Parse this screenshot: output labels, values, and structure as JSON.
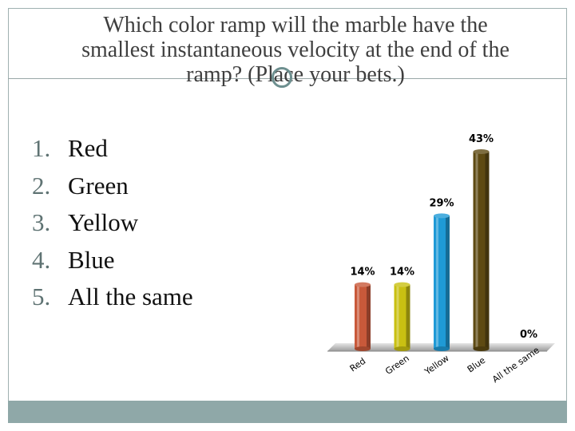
{
  "slide": {
    "title_lines": [
      "Which color ramp will the marble have the",
      "smallest instantaneous velocity at the end of the",
      "ramp? (Place your bets.)"
    ]
  },
  "options": [
    {
      "number": "1.",
      "label": "Red"
    },
    {
      "number": "2.",
      "label": "Green"
    },
    {
      "number": "3.",
      "label": "Yellow"
    },
    {
      "number": "4.",
      "label": "Blue"
    },
    {
      "number": "5.",
      "label": "All the same"
    }
  ],
  "chart_data": {
    "type": "bar",
    "categories": [
      "Red",
      "Green",
      "Yellow",
      "Blue",
      "All the same"
    ],
    "values": [
      14,
      14,
      29,
      43,
      0
    ],
    "data_labels": [
      "14%",
      "14%",
      "29%",
      "43%",
      "0%"
    ],
    "colors": [
      "#c8593a",
      "#c9c012",
      "#1f9ad6",
      "#5e4a12",
      "#808080"
    ],
    "ylim": [
      0,
      43
    ],
    "grid": false,
    "legend": "none"
  }
}
